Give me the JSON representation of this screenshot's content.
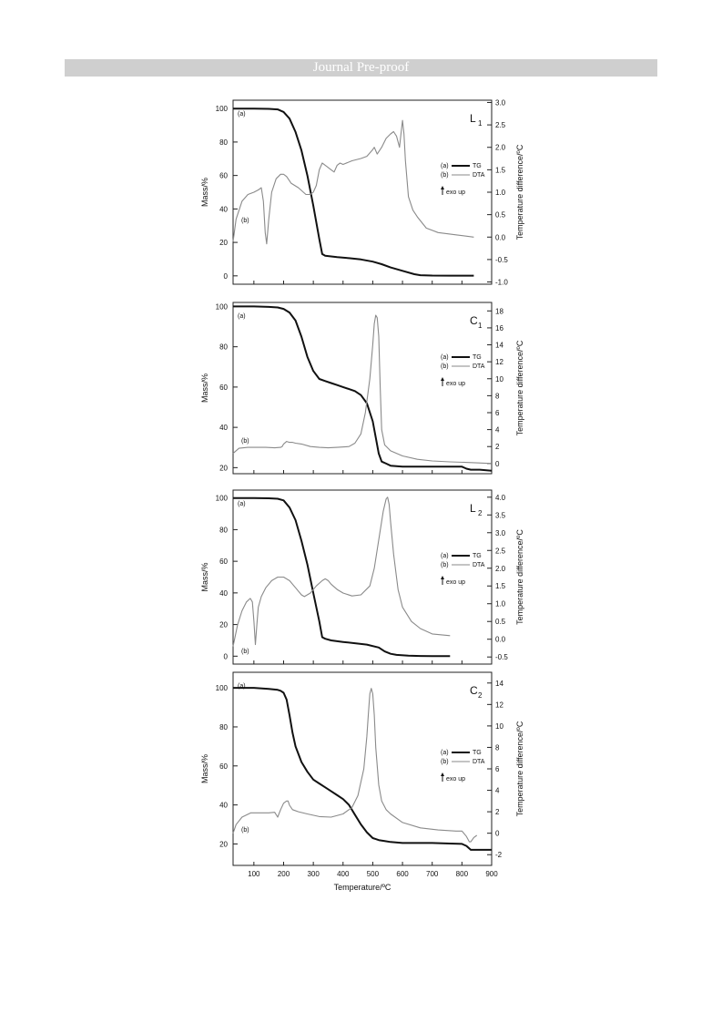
{
  "banner": "Journal Pre-proof",
  "shared_x": {
    "label": "Temperature/ºC",
    "ticks": [
      100,
      200,
      300,
      400,
      500,
      600,
      700,
      800,
      900
    ],
    "range": [
      30,
      900
    ]
  },
  "legend": {
    "a_code": "(a)",
    "a_name": "TG",
    "b_code": "(b)",
    "b_name": "DTA",
    "exo": "exo up"
  },
  "chart_data": [
    {
      "type": "line",
      "panel_label": "L",
      "panel_sub": "1",
      "ylabel_left": "Mass/%",
      "ylabel_right": "Temperature difference/ºC",
      "ylim_left": [
        -5,
        105
      ],
      "ylim_right": [
        -1.05,
        3.05
      ],
      "yticks_left": [
        0,
        20,
        40,
        60,
        80,
        100
      ],
      "yticks_right": [
        -1.0,
        -0.5,
        0.0,
        0.5,
        1.0,
        1.5,
        2.0,
        2.5,
        3.0
      ],
      "label_a": "(a)",
      "label_b": "(b)",
      "series": [
        {
          "name": "TG",
          "axis": "left",
          "x": [
            30,
            100,
            150,
            180,
            200,
            220,
            240,
            260,
            280,
            300,
            320,
            330,
            340,
            380,
            420,
            460,
            500,
            530,
            560,
            600,
            640,
            660,
            700,
            760,
            840
          ],
          "y": [
            100,
            100,
            99.8,
            99.5,
            98,
            94,
            86,
            75,
            60,
            42,
            22,
            13,
            12,
            11.2,
            10.6,
            9.8,
            8.5,
            7,
            5,
            3,
            1,
            0.4,
            0.2,
            0.1,
            0.1
          ]
        },
        {
          "name": "DTA",
          "axis": "right",
          "x": [
            30,
            40,
            60,
            80,
            100,
            115,
            125,
            132,
            138,
            143,
            150,
            160,
            175,
            190,
            200,
            210,
            225,
            250,
            275,
            290,
            300,
            310,
            320,
            330,
            340,
            350,
            360,
            370,
            380,
            390,
            400,
            430,
            460,
            480,
            500,
            505,
            515,
            530,
            545,
            560,
            570,
            580,
            590,
            595,
            600,
            605,
            610,
            620,
            635,
            650,
            680,
            720,
            780,
            840
          ],
          "y": [
            -0.1,
            0.4,
            0.8,
            0.95,
            1.0,
            1.05,
            1.1,
            0.8,
            0.1,
            -0.15,
            0.4,
            1.0,
            1.3,
            1.4,
            1.4,
            1.35,
            1.2,
            1.1,
            0.95,
            0.95,
            1.0,
            1.15,
            1.5,
            1.65,
            1.6,
            1.55,
            1.5,
            1.45,
            1.6,
            1.65,
            1.62,
            1.7,
            1.75,
            1.8,
            1.95,
            2.0,
            1.85,
            2.0,
            2.2,
            2.3,
            2.35,
            2.25,
            2.0,
            2.3,
            2.6,
            2.3,
            1.7,
            0.9,
            0.6,
            0.45,
            0.2,
            0.1,
            0.05,
            0.0
          ]
        }
      ]
    },
    {
      "type": "line",
      "panel_label": "C",
      "panel_sub": "1",
      "ylabel_left": "Mass/%",
      "ylabel_right": "Temperature difference/ºC",
      "ylim_left": [
        17,
        102
      ],
      "ylim_right": [
        -1.2,
        19
      ],
      "yticks_left": [
        20,
        40,
        60,
        80,
        100
      ],
      "yticks_right": [
        0,
        2,
        4,
        6,
        8,
        10,
        12,
        14,
        16,
        18
      ],
      "label_a": "(a)",
      "label_b": "(b)",
      "series": [
        {
          "name": "TG",
          "axis": "left",
          "x": [
            30,
            100,
            150,
            180,
            200,
            220,
            240,
            260,
            280,
            300,
            320,
            340,
            360,
            380,
            400,
            420,
            440,
            460,
            480,
            500,
            510,
            520,
            530,
            545,
            560,
            600,
            660,
            720,
            780,
            800,
            815,
            830,
            860,
            900
          ],
          "y": [
            100,
            100,
            99.8,
            99.5,
            98.8,
            97,
            93,
            85,
            75,
            68,
            64,
            63,
            62,
            61,
            60,
            59,
            58,
            56,
            52,
            43,
            35,
            27,
            23,
            22,
            21,
            20.5,
            20.5,
            20.5,
            20.5,
            20.5,
            19.5,
            19,
            19,
            18.5
          ]
        },
        {
          "name": "DTA",
          "axis": "right",
          "x": [
            30,
            50,
            80,
            110,
            140,
            170,
            190,
            195,
            200,
            210,
            220,
            230,
            240,
            260,
            290,
            320,
            350,
            380,
            420,
            440,
            460,
            475,
            490,
            500,
            505,
            510,
            515,
            520,
            525,
            530,
            540,
            560,
            600,
            650,
            700,
            760,
            840,
            900
          ],
          "y": [
            1.2,
            1.8,
            1.9,
            1.9,
            1.9,
            1.85,
            1.9,
            2.0,
            2.3,
            2.6,
            2.5,
            2.5,
            2.4,
            2.3,
            2.0,
            1.9,
            1.85,
            1.9,
            2.0,
            2.4,
            3.5,
            6,
            10,
            14,
            16.5,
            17.5,
            17.2,
            15,
            9,
            4,
            2.2,
            1.5,
            0.9,
            0.5,
            0.3,
            0.2,
            0.1,
            0.0
          ]
        }
      ]
    },
    {
      "type": "line",
      "panel_label": "L",
      "panel_sub": "2",
      "ylabel_left": "Mass/%",
      "ylabel_right": "Temperature difference/ºC",
      "ylim_left": [
        -5,
        105
      ],
      "ylim_right": [
        -0.7,
        4.2
      ],
      "yticks_left": [
        0,
        20,
        40,
        60,
        80,
        100
      ],
      "yticks_right": [
        -0.5,
        0.0,
        0.5,
        1.0,
        1.5,
        2.0,
        2.5,
        3.0,
        3.5,
        4.0
      ],
      "label_a": "(a)",
      "label_b": "(b)",
      "series": [
        {
          "name": "TG",
          "axis": "left",
          "x": [
            30,
            100,
            150,
            180,
            200,
            220,
            240,
            260,
            280,
            300,
            320,
            330,
            340,
            360,
            400,
            440,
            480,
            520,
            540,
            560,
            580,
            620,
            660,
            700,
            760
          ],
          "y": [
            100,
            100,
            99.8,
            99.5,
            98.5,
            94,
            86,
            73,
            58,
            40,
            22,
            12,
            11,
            10,
            9,
            8.2,
            7.3,
            5.5,
            3,
            1.5,
            0.8,
            0.3,
            0.1,
            0,
            0
          ]
        },
        {
          "name": "DTA",
          "axis": "right",
          "x": [
            30,
            45,
            60,
            75,
            88,
            95,
            100,
            105,
            110,
            115,
            125,
            140,
            160,
            180,
            200,
            220,
            240,
            260,
            270,
            290,
            310,
            330,
            340,
            350,
            360,
            380,
            400,
            430,
            460,
            490,
            505,
            520,
            535,
            545,
            550,
            555,
            560,
            570,
            585,
            600,
            630,
            660,
            700,
            760
          ],
          "y": [
            -0.2,
            0.4,
            0.8,
            1.05,
            1.15,
            1.05,
            0.5,
            -0.15,
            0.4,
            0.9,
            1.2,
            1.45,
            1.65,
            1.75,
            1.75,
            1.65,
            1.45,
            1.25,
            1.2,
            1.3,
            1.5,
            1.65,
            1.7,
            1.65,
            1.55,
            1.4,
            1.3,
            1.22,
            1.25,
            1.5,
            2.0,
            2.8,
            3.6,
            3.95,
            4.0,
            3.8,
            3.3,
            2.4,
            1.4,
            0.9,
            0.5,
            0.3,
            0.15,
            0.1
          ]
        }
      ]
    },
    {
      "type": "line",
      "panel_label": "C",
      "panel_sub": "2",
      "ylabel_left": "Mass/%",
      "ylabel_right": "Temperature difference/ºC",
      "ylim_left": [
        9,
        108
      ],
      "ylim_right": [
        -3,
        15
      ],
      "yticks_left": [
        20,
        40,
        60,
        80,
        100
      ],
      "yticks_right": [
        -2,
        0,
        2,
        4,
        6,
        8,
        10,
        12,
        14
      ],
      "label_a": "(a)",
      "label_b": "(b)",
      "series": [
        {
          "name": "TG",
          "axis": "left",
          "x": [
            30,
            100,
            150,
            180,
            190,
            200,
            210,
            220,
            230,
            240,
            260,
            280,
            300,
            320,
            340,
            360,
            380,
            400,
            420,
            440,
            460,
            480,
            500,
            510,
            520,
            540,
            560,
            600,
            640,
            700,
            760,
            800,
            815,
            830,
            860,
            900
          ],
          "y": [
            100,
            100,
            99.5,
            99,
            98.5,
            97.5,
            94,
            86,
            77,
            70,
            62,
            57,
            53,
            51,
            49,
            47,
            45,
            43,
            40,
            35,
            30,
            26,
            23,
            22.5,
            22,
            21.5,
            21,
            20.5,
            20.5,
            20.5,
            20.2,
            20,
            19,
            17,
            17,
            17
          ]
        },
        {
          "name": "DTA",
          "axis": "right",
          "x": [
            30,
            40,
            60,
            90,
            120,
            150,
            170,
            180,
            190,
            200,
            210,
            215,
            220,
            230,
            250,
            280,
            320,
            360,
            400,
            430,
            450,
            470,
            480,
            485,
            490,
            495,
            500,
            505,
            510,
            520,
            530,
            545,
            560,
            600,
            660,
            720,
            780,
            800,
            815,
            825,
            830,
            840,
            850
          ],
          "y": [
            0.0,
            0.8,
            1.5,
            1.9,
            1.9,
            1.9,
            1.95,
            1.5,
            2.2,
            2.8,
            3.0,
            3.0,
            2.6,
            2.2,
            2.0,
            1.8,
            1.55,
            1.5,
            1.8,
            2.4,
            3.5,
            6,
            9,
            11,
            13,
            13.5,
            13,
            11,
            8,
            4.5,
            3,
            2.2,
            1.8,
            1.0,
            0.5,
            0.3,
            0.2,
            0.2,
            -0.3,
            -0.8,
            -0.8,
            -0.4,
            -0.2
          ]
        }
      ]
    }
  ]
}
